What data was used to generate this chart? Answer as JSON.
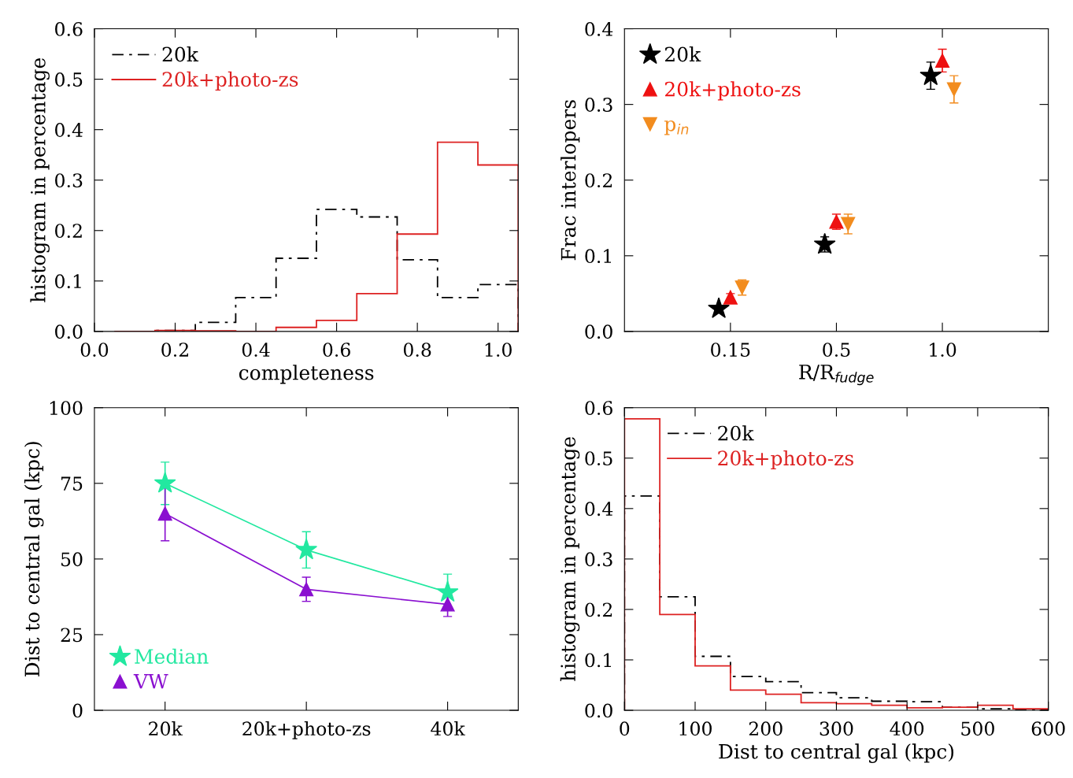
{
  "chart_data": [
    {
      "type": "histogram",
      "xlabel": "completeness",
      "ylabel": "histogram in percentage",
      "bins": [
        0.05,
        0.15,
        0.25,
        0.35,
        0.45,
        0.55,
        0.65,
        0.75,
        0.85,
        0.95,
        1.05
      ],
      "series": [
        {
          "name": "20k",
          "color": "#000000",
          "line_style": "dashdot",
          "values": [
            0,
            0.002,
            0.018,
            0.067,
            0.145,
            0.242,
            0.227,
            0.142,
            0.067,
            0.093
          ]
        },
        {
          "name": "20k+photo-zs",
          "color": "#dd2222",
          "line_style": "solid",
          "values": [
            0,
            0.002,
            0.001,
            0,
            0.008,
            0.022,
            0.075,
            0.193,
            0.375,
            0.33
          ]
        }
      ],
      "xlim": [
        0,
        1.05
      ],
      "xticks": [
        {
          "value": 0,
          "label": "0.0"
        },
        {
          "value": 0.2,
          "label": "0.2"
        },
        {
          "value": 0.4,
          "label": "0.4"
        },
        {
          "value": 0.6,
          "label": "0.6"
        },
        {
          "value": 0.8,
          "label": "0.8"
        },
        {
          "value": 1.0,
          "label": "1.0"
        }
      ],
      "ylim": [
        0,
        0.6
      ],
      "yticks": [
        {
          "value": 0,
          "label": "0.0"
        },
        {
          "value": 0.1,
          "label": "0.1"
        },
        {
          "value": 0.2,
          "label": "0.2"
        },
        {
          "value": 0.3,
          "label": "0.3"
        },
        {
          "value": 0.4,
          "label": "0.4"
        },
        {
          "value": 0.5,
          "label": "0.5"
        },
        {
          "value": 0.6,
          "label": "0.6"
        }
      ],
      "legend": "top left"
    },
    {
      "type": "scatter",
      "xlabel": "R/R$_{fudge}$",
      "ylabel": "Frac interlopers",
      "categories": [
        "0.15",
        "0.5",
        "1.0"
      ],
      "series": [
        {
          "name": "20k",
          "color": "#000000",
          "marker": "star",
          "values": [
            0.03,
            0.115,
            0.338
          ],
          "errors": [
            0.004,
            0.01,
            0.018
          ]
        },
        {
          "name": "20k+photo-zs",
          "color": "#ee1111",
          "marker": "triangle",
          "values": [
            0.045,
            0.145,
            0.358
          ],
          "errors": [
            0.005,
            0.01,
            0.015
          ]
        },
        {
          "name": "p$_{in}$",
          "color": "#f28c1e",
          "marker": "triangle_down",
          "values": [
            0.058,
            0.142,
            0.32
          ],
          "errors": [
            0.01,
            0.013,
            0.018
          ]
        }
      ],
      "ylim": [
        0,
        0.4
      ],
      "yticks": [
        {
          "value": 0,
          "label": "0.0"
        },
        {
          "value": 0.1,
          "label": "0.1"
        },
        {
          "value": 0.2,
          "label": "0.2"
        },
        {
          "value": 0.3,
          "label": "0.3"
        },
        {
          "value": 0.4,
          "label": "0.4"
        }
      ],
      "legend": "top left"
    },
    {
      "type": "line",
      "ylabel": "Dist to central gal (kpc)",
      "categories": [
        "20k",
        "20k+photo-zs",
        "40k"
      ],
      "series": [
        {
          "name": "Median",
          "color": "#22e8a0",
          "marker": "star",
          "values": [
            75,
            53,
            39
          ],
          "errors": [
            7,
            6,
            6
          ]
        },
        {
          "name": "VW",
          "color": "#8a10d0",
          "marker": "triangle",
          "values": [
            65,
            40,
            35
          ],
          "errors": [
            9,
            4,
            4
          ]
        }
      ],
      "ylim": [
        0,
        100
      ],
      "yticks": [
        0,
        25,
        50,
        75,
        100
      ],
      "legend": "bottom left"
    },
    {
      "type": "histogram",
      "xlabel": "Dist to central gal (kpc)",
      "ylabel": "histogram in percentage",
      "bins": [
        0,
        50,
        100,
        150,
        200,
        250,
        300,
        350,
        400,
        450,
        500,
        550,
        600
      ],
      "series": [
        {
          "name": "20k",
          "color": "#000000",
          "line_style": "dashdot",
          "values": [
            0.425,
            0.225,
            0.107,
            0.067,
            0.057,
            0.035,
            0.025,
            0.018,
            0.017,
            0.006,
            0.003,
            0.001
          ]
        },
        {
          "name": "20k+photo-zs",
          "color": "#dd2222",
          "line_style": "solid",
          "values": [
            0.578,
            0.19,
            0.088,
            0.04,
            0.032,
            0.015,
            0.013,
            0.01,
            0.005,
            0.006,
            0.01,
            0.003
          ]
        }
      ],
      "xlim": [
        0,
        600
      ],
      "xticks": [
        0,
        100,
        200,
        300,
        400,
        500,
        600
      ],
      "ylim": [
        0,
        0.6
      ],
      "yticks": [
        {
          "value": 0,
          "label": "0.0"
        },
        {
          "value": 0.1,
          "label": "0.1"
        },
        {
          "value": 0.2,
          "label": "0.2"
        },
        {
          "value": 0.3,
          "label": "0.3"
        },
        {
          "value": 0.4,
          "label": "0.4"
        },
        {
          "value": 0.5,
          "label": "0.5"
        },
        {
          "value": 0.6,
          "label": "0.6"
        }
      ],
      "legend": "top"
    }
  ]
}
